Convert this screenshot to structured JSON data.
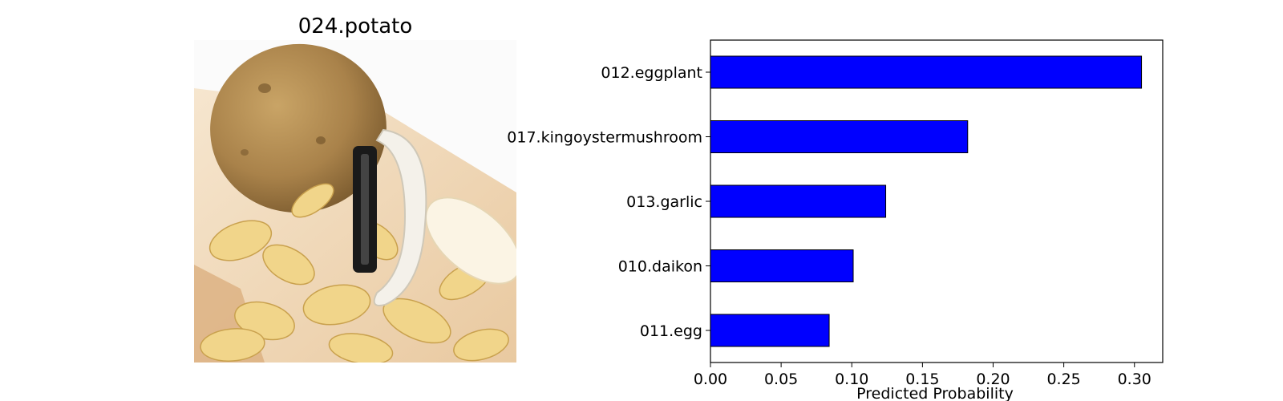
{
  "image_panel": {
    "title": "024.potato",
    "subject": "potato with peeler and peelings"
  },
  "chart_data": {
    "type": "bar",
    "orientation": "horizontal",
    "categories": [
      "012.eggplant",
      "017.kingoystermushroom",
      "013.garlic",
      "010.daikon",
      "011.egg"
    ],
    "values": [
      0.305,
      0.182,
      0.124,
      0.101,
      0.084
    ],
    "xlabel": "Predicted Probability",
    "ylabel": "",
    "xlim": [
      0,
      0.32
    ],
    "xticks": [
      "0.00",
      "0.05",
      "0.10",
      "0.15",
      "0.20",
      "0.25",
      "0.30"
    ],
    "bar_color": "#0000ff",
    "bar_edge_color": "#000000",
    "grid": false,
    "legend": "none"
  }
}
